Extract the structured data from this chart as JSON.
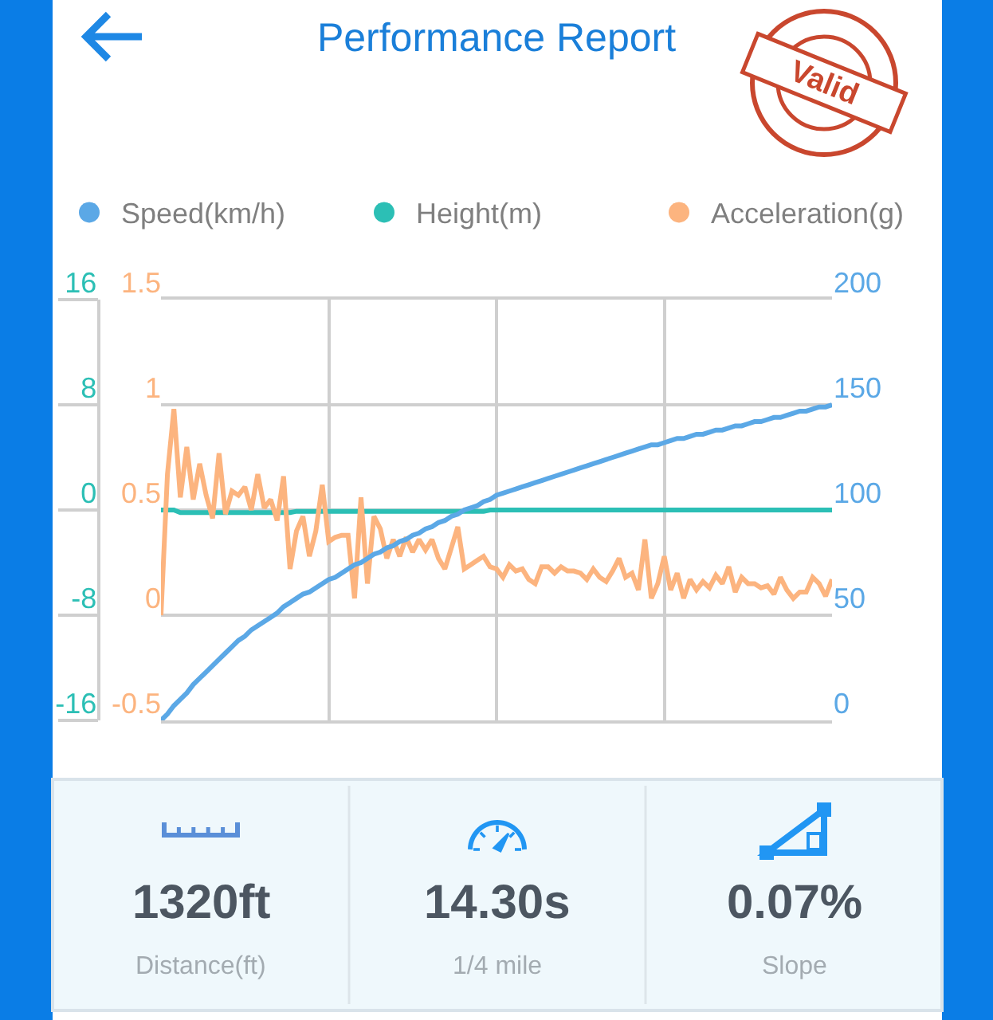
{
  "chart_data": [
    {
      "type": "line",
      "title": "Performance Report",
      "annotations": [
        "Valid"
      ],
      "categories": [
        null,
        null,
        null,
        null,
        null,
        null,
        null,
        null,
        null,
        null,
        null,
        null,
        null,
        null,
        null,
        null,
        null,
        null,
        null,
        null,
        null,
        null,
        null,
        null,
        null,
        null,
        null,
        null,
        null,
        null,
        null,
        null,
        null,
        null,
        null,
        null,
        null,
        null,
        null,
        null,
        null,
        null,
        null,
        null,
        null,
        null,
        null,
        null,
        null,
        null,
        null,
        null,
        null,
        null,
        null,
        null,
        null,
        null,
        null,
        null,
        null,
        null,
        null,
        null,
        null,
        null,
        null,
        null,
        null,
        null,
        null,
        null,
        null,
        null,
        null,
        null,
        null,
        null,
        null,
        null,
        null,
        null,
        null,
        null,
        null,
        null,
        null,
        null,
        null,
        null,
        null,
        null,
        null,
        null,
        null,
        null,
        null,
        null,
        null,
        null,
        null,
        null,
        null,
        null,
        null
      ],
      "series": [
        {
          "name": "Speed(km/h)",
          "color": "#5ba8e6",
          "axis": "y3",
          "values": [
            0,
            3,
            7,
            10,
            13,
            17,
            20,
            23,
            26,
            29,
            32,
            35,
            38,
            40,
            43,
            45,
            47,
            49,
            51,
            54,
            56,
            58,
            60,
            61,
            63,
            65,
            67,
            68,
            70,
            72,
            74,
            75,
            77,
            79,
            80,
            82,
            83,
            85,
            86,
            88,
            89,
            91,
            92,
            94,
            95,
            97,
            98,
            100,
            101,
            102,
            104,
            105,
            107,
            108,
            109,
            110,
            111,
            112,
            113,
            114,
            115,
            116,
            117,
            118,
            119,
            120,
            121,
            122,
            123,
            124,
            125,
            126,
            127,
            128,
            129,
            130,
            131,
            131,
            132,
            133,
            134,
            134,
            135,
            136,
            136,
            137,
            138,
            138,
            139,
            140,
            140,
            141,
            142,
            142,
            143,
            144,
            144,
            145,
            146,
            147,
            147,
            148,
            149,
            149,
            150
          ]
        },
        {
          "name": "Height(m)",
          "color": "#2cbfb5",
          "values": [
            0,
            0,
            0,
            -0.2,
            -0.2,
            -0.2,
            -0.2,
            -0.2,
            -0.2,
            -0.2,
            -0.2,
            -0.2,
            -0.2,
            -0.2,
            -0.2,
            -0.2,
            -0.2,
            -0.2,
            -0.2,
            -0.2,
            -0.2,
            -0.1,
            -0.1,
            -0.1,
            -0.1,
            -0.1,
            -0.1,
            -0.1,
            -0.1,
            -0.1,
            -0.1,
            -0.1,
            -0.1,
            -0.1,
            -0.1,
            -0.1,
            -0.1,
            -0.1,
            -0.1,
            -0.1,
            -0.1,
            -0.1,
            -0.1,
            -0.1,
            -0.1,
            -0.1,
            -0.1,
            -0.1,
            -0.1,
            -0.1,
            -0.1,
            0,
            0,
            0,
            0,
            0,
            0,
            0,
            0,
            0,
            0,
            0,
            0,
            0,
            0,
            0,
            0,
            0,
            0,
            0,
            0,
            0,
            0,
            0,
            0,
            0,
            0,
            0,
            0,
            0,
            0,
            0,
            0,
            0,
            0,
            0,
            0,
            0,
            0,
            0,
            0,
            0,
            0,
            0,
            0,
            0,
            0,
            0,
            0,
            0,
            0,
            0,
            0,
            0,
            0
          ]
        },
        {
          "name": "Acceleration(g)",
          "color": "#fcb47f",
          "axis": "y2",
          "values": [
            0,
            0.67,
            0.98,
            0.56,
            0.8,
            0.55,
            0.72,
            0.57,
            0.46,
            0.77,
            0.48,
            0.59,
            0.57,
            0.61,
            0.5,
            0.67,
            0.51,
            0.55,
            0.45,
            0.66,
            0.22,
            0.4,
            0.47,
            0.28,
            0.4,
            0.62,
            0.35,
            0.37,
            0.38,
            0.38,
            0.08,
            0.56,
            0.15,
            0.47,
            0.41,
            0.27,
            0.36,
            0.28,
            0.37,
            0.3,
            0.36,
            0.31,
            0.36,
            0.27,
            0.22,
            0.32,
            0.42,
            0.22,
            0.24,
            0.26,
            0.28,
            0.23,
            0.22,
            0.18,
            0.24,
            0.21,
            0.22,
            0.17,
            0.15,
            0.23,
            0.23,
            0.2,
            0.23,
            0.21,
            0.21,
            0.2,
            0.17,
            0.22,
            0.18,
            0.16,
            0.21,
            0.27,
            0.18,
            0.2,
            0.12,
            0.36,
            0.08,
            0.15,
            0.28,
            0.12,
            0.2,
            0.08,
            0.17,
            0.12,
            0.16,
            0.13,
            0.19,
            0.15,
            0.23,
            0.11,
            0.18,
            0.15,
            0.15,
            0.13,
            0.14,
            0.1,
            0.18,
            0.12,
            0.08,
            0.11,
            0.11,
            0.18,
            0.15,
            0.09,
            0.17
          ]
        }
      ],
      "ylim": [
        -16,
        16
      ],
      "yticks": [
        -16,
        -8,
        0,
        8,
        16
      ],
      "y2lim": [
        -0.5,
        1.5
      ],
      "y2ticks": [
        -0.5,
        0,
        0.5,
        1,
        1.5
      ],
      "y3lim": [
        0,
        200
      ],
      "y3ticks": [
        0,
        50,
        100,
        150,
        200
      ],
      "grid": true,
      "legend": "top"
    },
    {
      "type": "other",
      "annotations": [
        "1320ft",
        "Distance(ft)",
        "14.30s",
        "1/4 mile",
        "0.07%",
        "Slope"
      ]
    }
  ]
}
